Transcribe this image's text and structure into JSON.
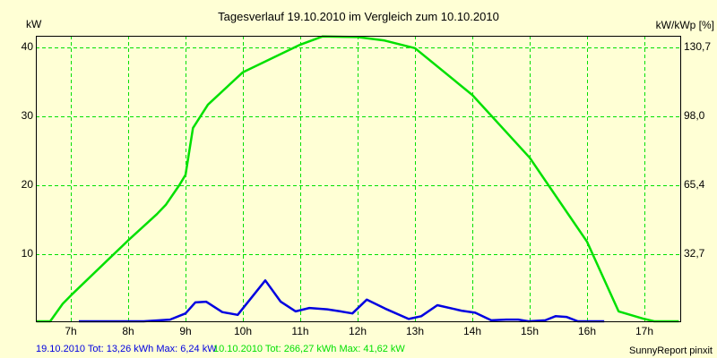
{
  "chart_data": {
    "type": "line",
    "title": "Tagesverlauf 19.10.2010 im Vergleich zum 10.10.2010",
    "ylabel": "kW",
    "ylabel_right": "kW/kWp [%]",
    "ylim": [
      0,
      42
    ],
    "xlim": [
      6.4,
      17.6
    ],
    "grid": true,
    "y_ticks": [
      {
        "value": 10,
        "label": "10"
      },
      {
        "value": 20,
        "label": "20"
      },
      {
        "value": 30,
        "label": "30"
      },
      {
        "value": 40,
        "label": "40"
      }
    ],
    "y_ticks_right": [
      {
        "value": 10,
        "label": "32,7"
      },
      {
        "value": 20,
        "label": "65,4"
      },
      {
        "value": 30,
        "label": "98,0"
      },
      {
        "value": 40,
        "label": "130,7"
      }
    ],
    "x_ticks": [
      {
        "value": 7,
        "label": "7h"
      },
      {
        "value": 8,
        "label": "8h"
      },
      {
        "value": 9,
        "label": "9h"
      },
      {
        "value": 10,
        "label": "10h"
      },
      {
        "value": 11,
        "label": "11h"
      },
      {
        "value": 12,
        "label": "12h"
      },
      {
        "value": 13,
        "label": "13h"
      },
      {
        "value": 14,
        "label": "14h"
      },
      {
        "value": 15,
        "label": "15h"
      },
      {
        "value": 16,
        "label": "16h"
      },
      {
        "value": 17,
        "label": "17h"
      }
    ],
    "series": [
      {
        "name": "10.10.2010",
        "color": "#00E000",
        "x": [
          6.4,
          6.64,
          6.86,
          7.0,
          8.0,
          8.5,
          8.66,
          8.89,
          9.0,
          9.13,
          9.39,
          10.0,
          11.0,
          11.39,
          12.0,
          12.47,
          13.0,
          14.0,
          15.0,
          16.0,
          16.55,
          17.0,
          17.17,
          17.6
        ],
        "values": [
          0,
          0,
          2.8,
          4.0,
          12.0,
          15.8,
          17.2,
          20.0,
          21.5,
          28.3,
          31.7,
          36.4,
          40.4,
          41.6,
          41.5,
          41.0,
          39.9,
          33.1,
          24.0,
          11.8,
          1.7,
          0.6,
          0,
          0
        ],
        "legend": "10.10.2010 Tot: 266,27 kWh Max: 41,62 kW"
      },
      {
        "name": "19.10.2010",
        "color": "#0000E0",
        "x": [
          7.14,
          8.27,
          8.73,
          9.0,
          9.17,
          9.36,
          9.64,
          9.91,
          10.14,
          10.39,
          10.66,
          10.92,
          11.16,
          11.47,
          11.7,
          11.91,
          12.16,
          12.48,
          12.89,
          13.11,
          13.39,
          13.81,
          14.05,
          14.33,
          14.59,
          14.8,
          14.98,
          15.27,
          15.45,
          15.64,
          15.84,
          16.3
        ],
        "values": [
          0,
          0,
          0.5,
          1.4,
          3.0,
          3.1,
          1.6,
          1.2,
          3.6,
          6.2,
          3.1,
          1.7,
          2.2,
          2.0,
          1.7,
          1.4,
          3.4,
          2.1,
          0.6,
          1.0,
          2.6,
          1.8,
          1.5,
          0.4,
          0.5,
          0.5,
          0.2,
          0.4,
          1.0,
          0.9,
          0,
          0
        ],
        "legend": "19.10.2010 Tot: 13,26 kWh Max: 6,24 kW"
      }
    ]
  },
  "labels": {
    "title": "Tagesverlauf 19.10.2010 im Vergleich zum 10.10.2010",
    "y_unit_left": "kW",
    "y_unit_right": "kW/kWp [%]",
    "legend_blue": "19.10.2010 Tot: 13,26 kWh Max: 6,24 kW",
    "legend_green": "10.10.2010 Tot: 266,27 kWh Max: 41,62 kW",
    "footer_brand": "SunnyReport pinxit"
  },
  "colors": {
    "background": "#FFFFD5",
    "grid": "#00E000",
    "series_green": "#00E000",
    "series_blue": "#0000E0",
    "axis": "#000000"
  }
}
